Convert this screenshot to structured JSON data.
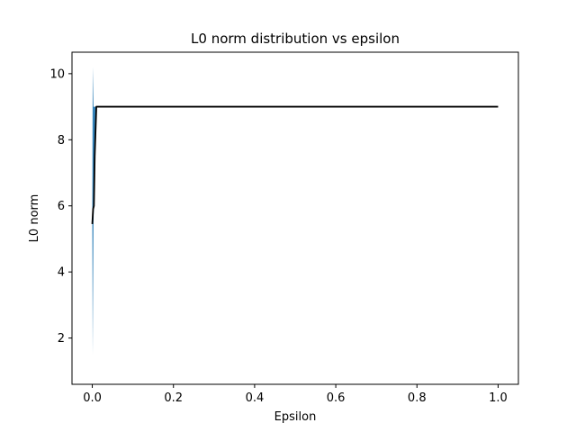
{
  "chart_data": {
    "type": "line",
    "title": "L0 norm distribution vs epsilon",
    "xlabel": "Epsilon",
    "ylabel": "L0 norm",
    "xlim": [
      -0.05,
      1.05
    ],
    "ylim": [
      0.6,
      10.65
    ],
    "x_ticks": [
      0.0,
      0.2,
      0.4,
      0.6,
      0.8,
      1.0
    ],
    "x_tick_labels": [
      "0.0",
      "0.2",
      "0.4",
      "0.6",
      "0.8",
      "1.0"
    ],
    "y_ticks": [
      2,
      4,
      6,
      8,
      10
    ],
    "y_tick_labels": [
      "2",
      "4",
      "6",
      "8",
      "10"
    ],
    "grid": false,
    "legend": "none",
    "series": [
      {
        "kind": "mean-line",
        "color": "#000000",
        "x": [
          0.0,
          0.002,
          0.004,
          0.006,
          0.01,
          0.02,
          1.0
        ],
        "y": [
          5.45,
          5.9,
          6.0,
          7.5,
          9.0,
          9.0,
          9.0
        ]
      },
      {
        "kind": "band",
        "color": "#1f77b4",
        "x": [
          0.0,
          0.001,
          0.003,
          0.006,
          0.01
        ],
        "upper": [
          6.0,
          10.2,
          9.0,
          9.0,
          9.0
        ],
        "lower": [
          5.4,
          1.5,
          5.5,
          7.0,
          9.0
        ]
      }
    ]
  }
}
